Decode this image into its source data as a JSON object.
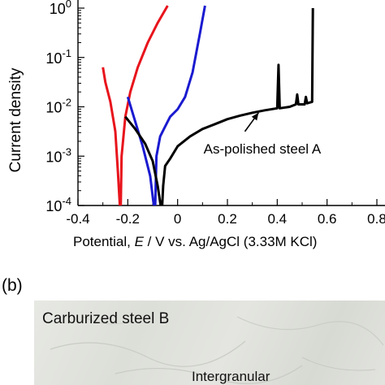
{
  "panel_b_label": "(b)",
  "photo_title": "Carburized steel B",
  "photo_annotation": "Intergranular",
  "chart_data": {
    "type": "line",
    "ylabel": "Current density",
    "xlabel": "Potential, E  / V vs. Ag/AgCl (3.33M KCl)",
    "x_ticks": [
      "-0.4",
      "-0.2",
      "0",
      "0.2",
      "0.4",
      "0.6",
      "0.8"
    ],
    "y_tick_exponents": [
      "0",
      "-1",
      "-2",
      "-3",
      "-4"
    ],
    "xlim": [
      -0.4,
      0.8
    ],
    "ylim_log10": [
      -4,
      0
    ],
    "yscale": "log",
    "annotation": "As-polished steel A",
    "series": [
      {
        "color": "#e8141c",
        "points": [
          [
            -0.3,
            -1.2
          ],
          [
            -0.29,
            -1.5
          ],
          [
            -0.27,
            -1.9
          ],
          [
            -0.25,
            -2.5
          ],
          [
            -0.24,
            -3.3
          ],
          [
            -0.233,
            -3.9
          ],
          [
            -0.232,
            -4.0
          ],
          [
            -0.228,
            -4.0
          ],
          [
            -0.227,
            -3.6
          ],
          [
            -0.225,
            -3.0
          ],
          [
            -0.21,
            -2.2
          ],
          [
            -0.19,
            -1.7
          ],
          [
            -0.16,
            -1.2
          ],
          [
            -0.12,
            -0.7
          ],
          [
            -0.08,
            -0.3
          ],
          [
            -0.04,
            0.05
          ]
        ]
      },
      {
        "color": "#1a1ad0",
        "points": [
          [
            -0.2,
            -1.8
          ],
          [
            -0.17,
            -2.3
          ],
          [
            -0.14,
            -2.8
          ],
          [
            -0.11,
            -3.4
          ],
          [
            -0.098,
            -3.9
          ],
          [
            -0.095,
            -4.0
          ],
          [
            -0.09,
            -4.0
          ],
          [
            -0.088,
            -3.6
          ],
          [
            -0.085,
            -3.0
          ],
          [
            -0.07,
            -2.6
          ],
          [
            -0.05,
            -2.4
          ],
          [
            -0.03,
            -2.2
          ],
          [
            0.0,
            -2.05
          ],
          [
            0.03,
            -1.8
          ],
          [
            0.06,
            -1.3
          ],
          [
            0.09,
            -0.5
          ],
          [
            0.11,
            0.05
          ]
        ]
      },
      {
        "color": "#000000",
        "points": [
          [
            -0.21,
            -2.2
          ],
          [
            -0.17,
            -2.45
          ],
          [
            -0.13,
            -2.75
          ],
          [
            -0.1,
            -3.1
          ],
          [
            -0.08,
            -3.6
          ],
          [
            -0.068,
            -4.0
          ],
          [
            -0.062,
            -4.0
          ],
          [
            -0.058,
            -3.6
          ],
          [
            -0.05,
            -3.2
          ],
          [
            -0.03,
            -3.05
          ],
          [
            0.0,
            -2.8
          ],
          [
            0.05,
            -2.6
          ],
          [
            0.1,
            -2.45
          ],
          [
            0.15,
            -2.35
          ],
          [
            0.2,
            -2.25
          ],
          [
            0.25,
            -2.18
          ],
          [
            0.3,
            -2.12
          ],
          [
            0.35,
            -2.07
          ],
          [
            0.4,
            -2.03
          ],
          [
            0.405,
            -1.15
          ],
          [
            0.41,
            -2.03
          ],
          [
            0.45,
            -2.0
          ],
          [
            0.475,
            -1.95
          ],
          [
            0.48,
            -1.75
          ],
          [
            0.485,
            -1.95
          ],
          [
            0.51,
            -1.95
          ],
          [
            0.515,
            -1.8
          ],
          [
            0.52,
            -1.93
          ],
          [
            0.54,
            -1.9
          ],
          [
            0.543,
            0.0
          ]
        ]
      }
    ]
  }
}
